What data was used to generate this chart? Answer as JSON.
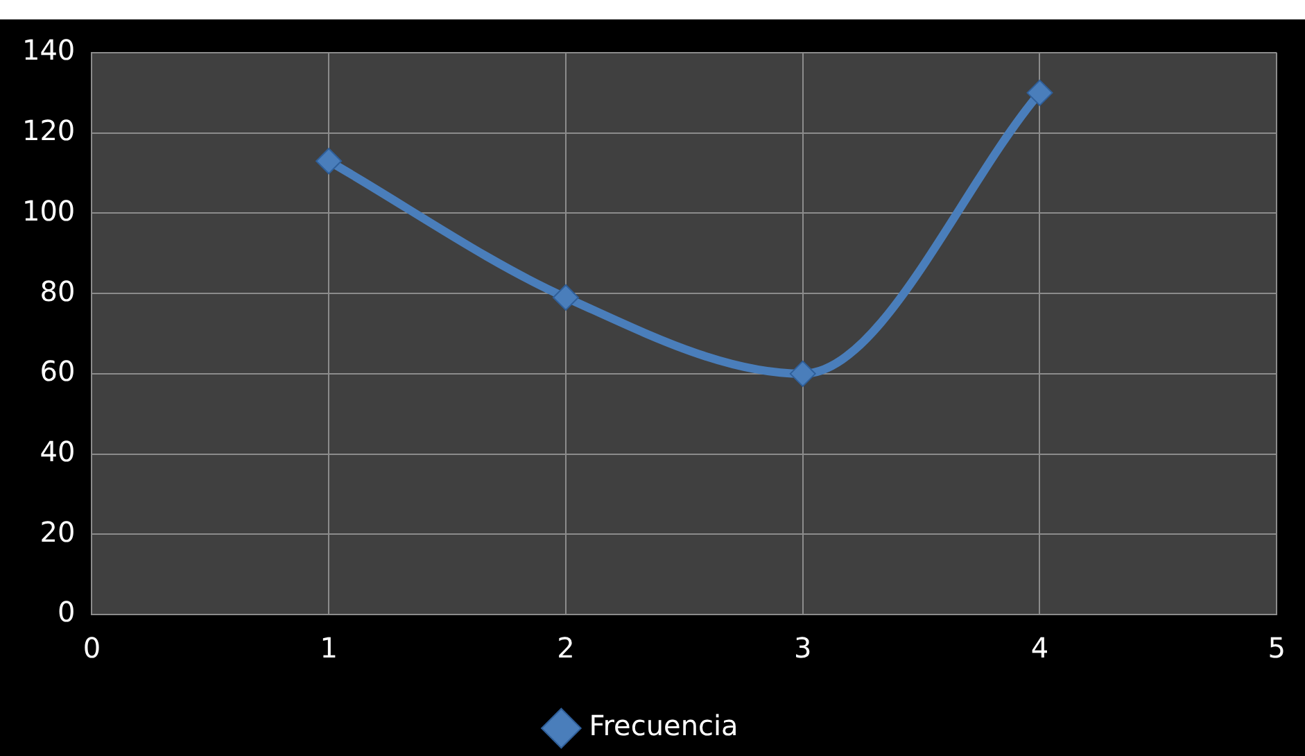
{
  "chart_data": {
    "type": "line",
    "x": [
      1,
      2,
      3,
      4
    ],
    "series": [
      {
        "name": "Frecuencia",
        "color": "#4a7ebb",
        "values": [
          113,
          79,
          60,
          130
        ]
      }
    ],
    "xlim": [
      0,
      5
    ],
    "xticks": [
      0,
      1,
      2,
      3,
      4,
      5
    ],
    "ylim": [
      0,
      140
    ],
    "yticks": [
      0,
      20,
      40,
      60,
      80,
      100,
      120,
      140
    ],
    "grid": true,
    "legend": "bottom",
    "marker": "diamond",
    "line_style": "solid"
  }
}
